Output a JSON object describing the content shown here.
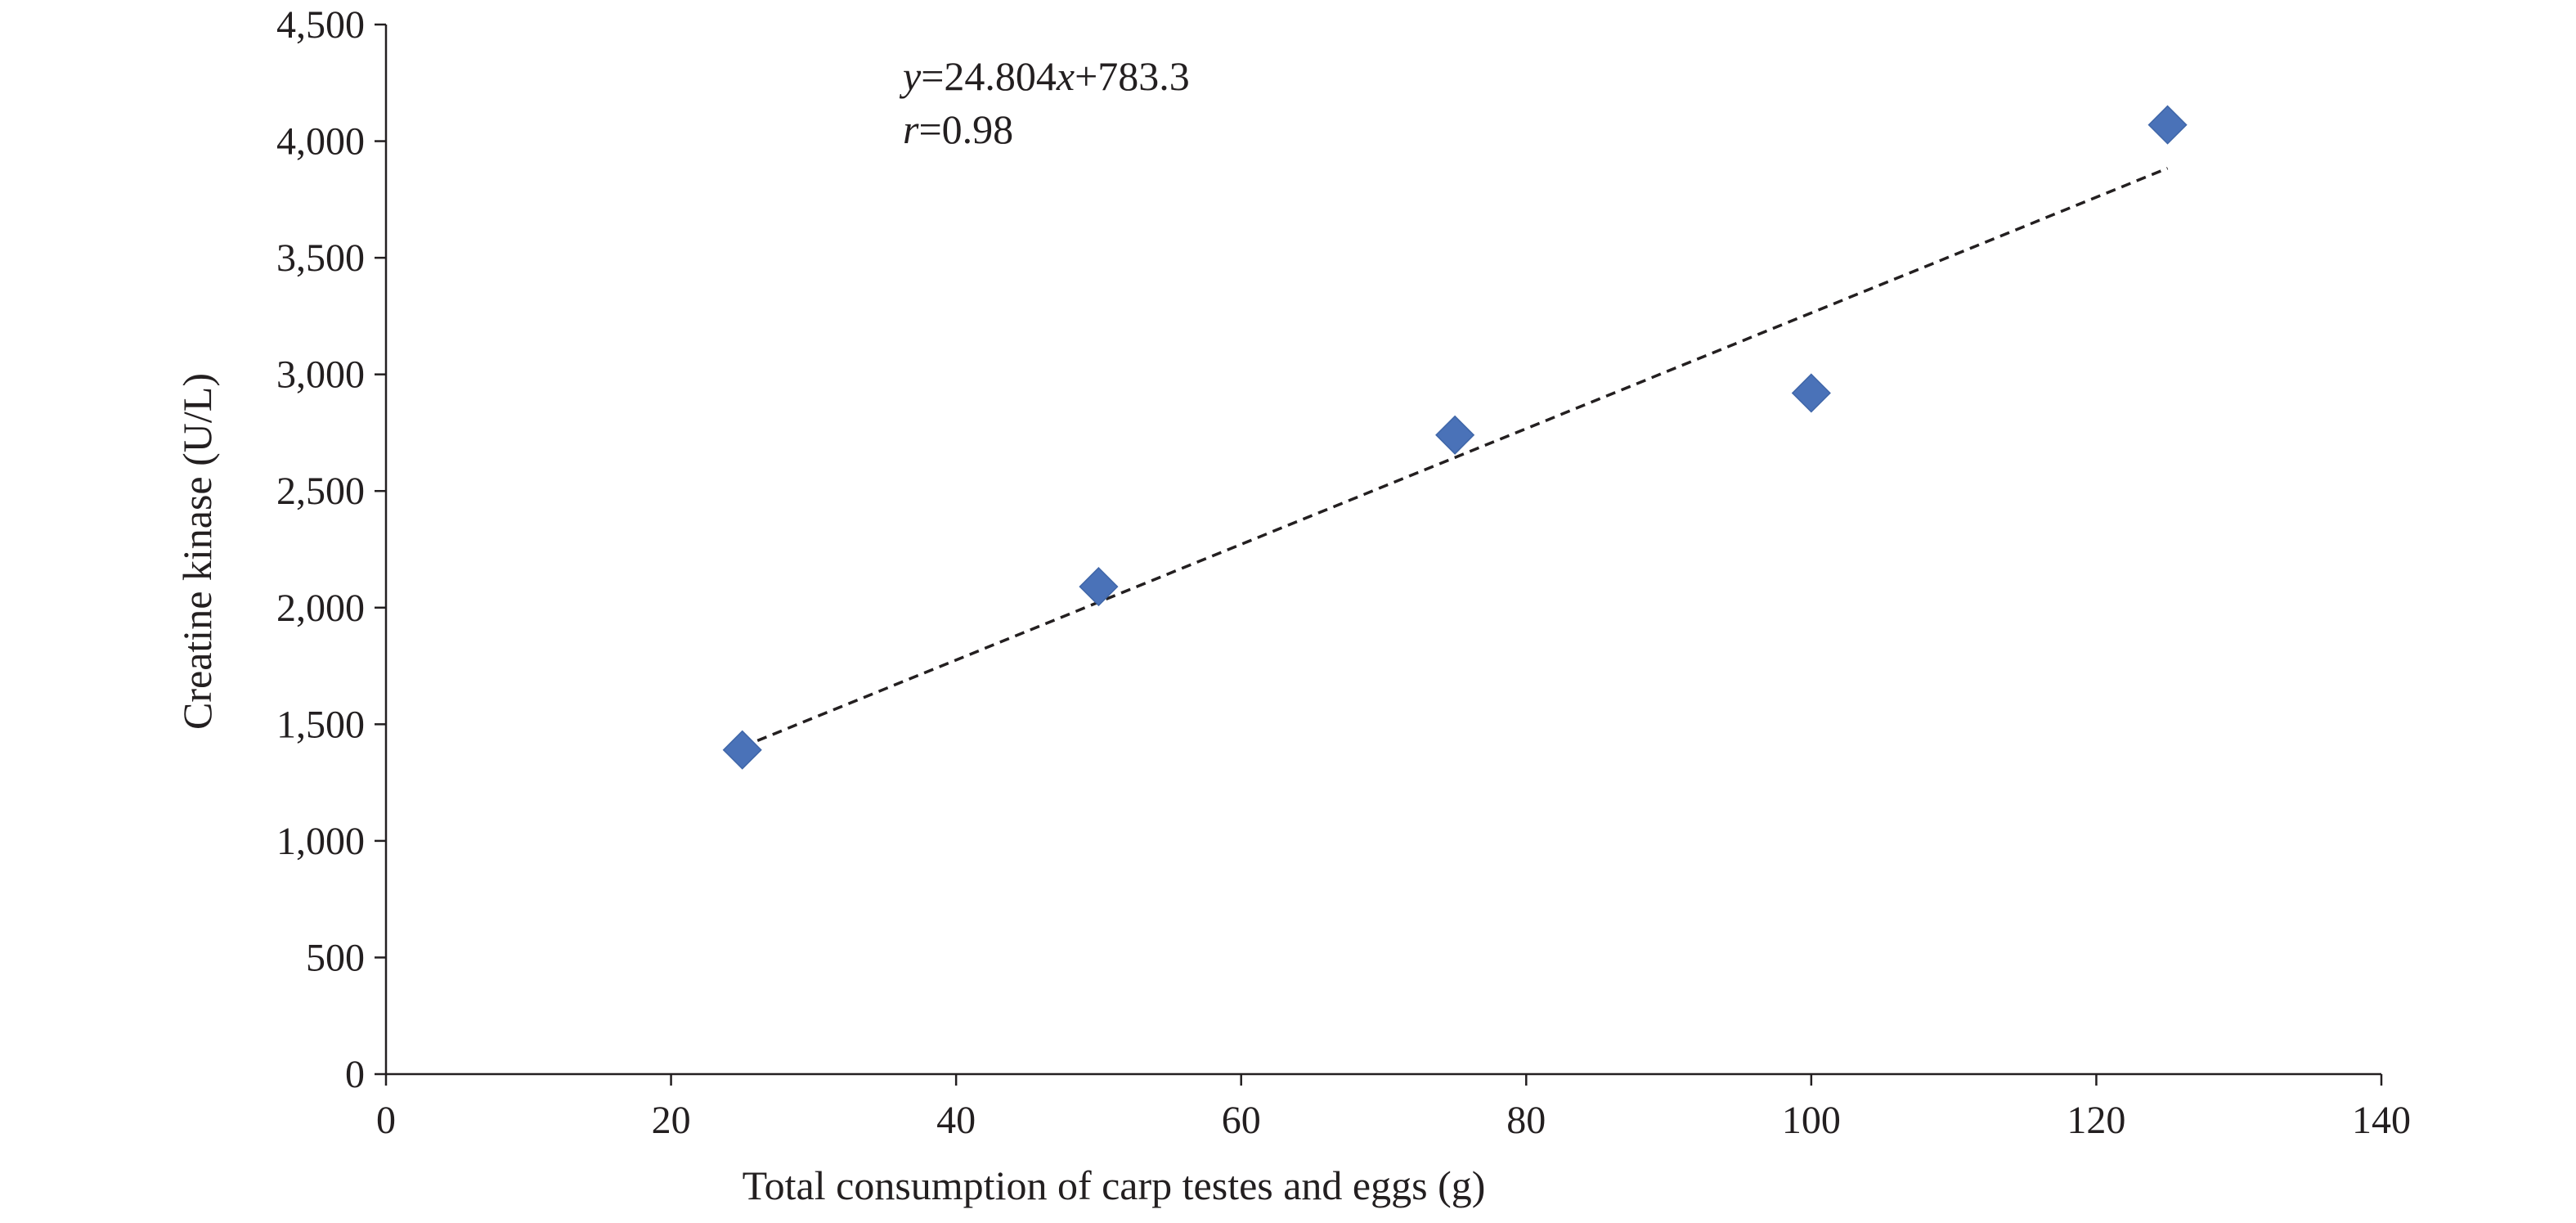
{
  "chart_data": {
    "type": "scatter",
    "title": "",
    "xlabel": "Total consumption of carp testes and eggs (g)",
    "ylabel": "Creatine kinase (U/L)",
    "xlim": [
      0,
      140
    ],
    "ylim": [
      0,
      4500
    ],
    "x_ticks": [
      0,
      20,
      40,
      60,
      80,
      100,
      120,
      140
    ],
    "y_ticks": [
      0,
      500,
      1000,
      1500,
      2000,
      2500,
      3000,
      3500,
      4000,
      4500
    ],
    "x_tick_labels": [
      "0",
      "20",
      "40",
      "60",
      "80",
      "100",
      "120",
      "140"
    ],
    "y_tick_labels": [
      "0",
      "500",
      "1,000",
      "1,500",
      "2,000",
      "2,500",
      "3,000",
      "3,500",
      "4,000",
      "4,500"
    ],
    "grid": false,
    "legend": "none",
    "marker": "diamond",
    "marker_color": "#4a72b8",
    "series": [
      {
        "x": [
          25,
          50,
          75,
          100,
          125
        ],
        "y": [
          1390,
          2090,
          2740,
          2920,
          4070
        ]
      }
    ],
    "trendline": {
      "style": "dashed",
      "slope": 24.804,
      "intercept": 783.3,
      "x_range": [
        25,
        125
      ]
    },
    "annotation": {
      "equation": {
        "y_var": "y",
        "eq_part1": "=24.804",
        "x_var": "x",
        "eq_part2": "+783.3"
      },
      "correlation": {
        "r_var": "r",
        "r_part": "=0.98"
      }
    }
  }
}
